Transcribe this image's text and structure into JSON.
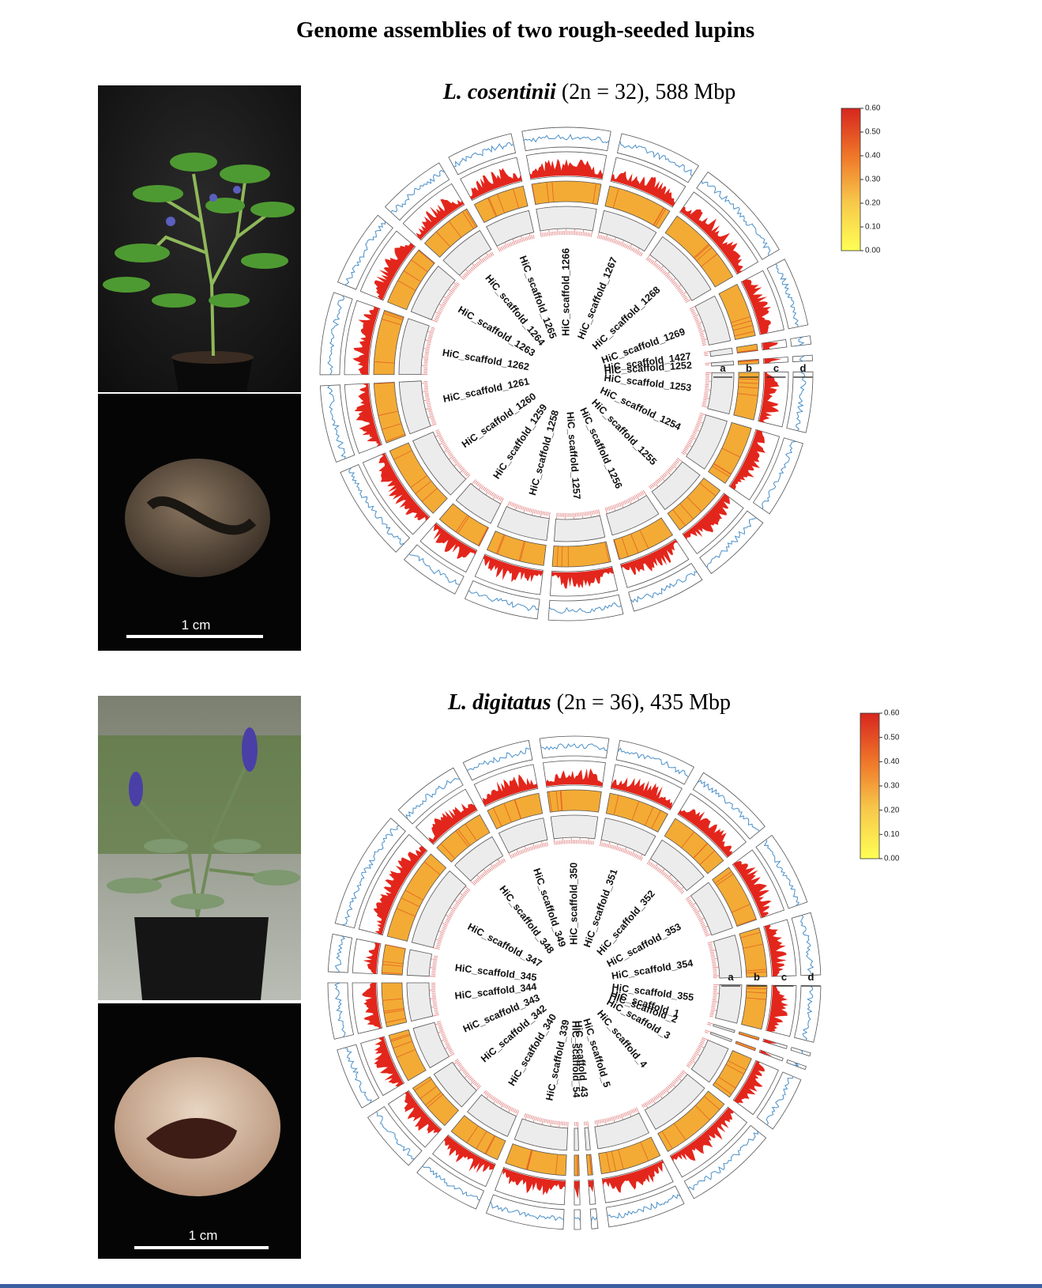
{
  "title": "Genome assemblies of two rough-seeded lupins",
  "panels": [
    {
      "species": "L. cosentinii",
      "detail": "(2n = 32), 588 Mbp",
      "scale_bar": "1 cm",
      "track_labels": [
        "a",
        "b",
        "c",
        "d"
      ],
      "colorbar": {
        "lim": [
          0,
          0.6
        ],
        "ticks": [
          {
            "value": 0.6,
            "label": "0.60"
          },
          {
            "value": 0.5,
            "label": "0.50"
          },
          {
            "value": 0.4,
            "label": "0.40"
          },
          {
            "value": 0.3,
            "label": "0.30"
          },
          {
            "value": 0.2,
            "label": "0.20"
          },
          {
            "value": 0.1,
            "label": "0.10"
          },
          {
            "value": 0,
            "label": "0.00"
          }
        ]
      },
      "scaffolds": [
        {
          "name": "HiC_scaffold_1266",
          "size": 32
        },
        {
          "name": "HiC_scaffold_1267",
          "size": 30
        },
        {
          "name": "HiC_scaffold_1268",
          "size": 38
        },
        {
          "name": "HiC_scaffold_1269",
          "size": 25
        },
        {
          "name": "HiC_scaffold_1427",
          "size": 3
        },
        {
          "name": "HiC_scaffold_1252",
          "size": 2
        },
        {
          "name": "HiC_scaffold_1253",
          "size": 22
        },
        {
          "name": "HiC_scaffold_1254",
          "size": 28
        },
        {
          "name": "HiC_scaffold_1255",
          "size": 26
        },
        {
          "name": "HiC_scaffold_1256",
          "size": 27
        },
        {
          "name": "HiC_scaffold_1257",
          "size": 27
        },
        {
          "name": "HiC_scaffold_1258",
          "size": 27
        },
        {
          "name": "HiC_scaffold_1259",
          "size": 22
        },
        {
          "name": "HiC_scaffold_1260",
          "size": 35
        },
        {
          "name": "HiC_scaffold_1261",
          "size": 28
        },
        {
          "name": "HiC_scaffold_1262",
          "size": 30
        },
        {
          "name": "HiC_scaffold_1263",
          "size": 28
        },
        {
          "name": "HiC_scaffold_1264",
          "size": 25
        },
        {
          "name": "HiC_scaffold_1265",
          "size": 24
        }
      ]
    },
    {
      "species": "L. digitatus",
      "detail": "(2n = 36), 435 Mbp",
      "scale_bar": "1 cm",
      "track_labels": [
        "a",
        "b",
        "c",
        "d"
      ],
      "colorbar": {
        "lim": [
          0,
          0.6
        ],
        "ticks": [
          {
            "value": 0.6,
            "label": "0.60"
          },
          {
            "value": 0.5,
            "label": "0.50"
          },
          {
            "value": 0.4,
            "label": "0.40"
          },
          {
            "value": 0.3,
            "label": "0.30"
          },
          {
            "value": 0.2,
            "label": "0.20"
          },
          {
            "value": 0.1,
            "label": "0.10"
          },
          {
            "value": 0,
            "label": "0.00"
          }
        ]
      },
      "scaffolds": [
        {
          "name": "HiC_scaffold_350",
          "size": 22
        },
        {
          "name": "HiC_scaffold_351",
          "size": 25
        },
        {
          "name": "HiC_scaffold_352",
          "size": 26
        },
        {
          "name": "HiC_scaffold_353",
          "size": 24
        },
        {
          "name": "HiC_scaffold_354",
          "size": 20
        },
        {
          "name": "HiC_scaffold_355",
          "size": 18
        },
        {
          "name": "HiC_scaffold_1",
          "size": 1
        },
        {
          "name": "HiC_scaffold_2",
          "size": 1
        },
        {
          "name": "HiC_scaffold_3",
          "size": 18
        },
        {
          "name": "HiC_scaffold_4",
          "size": 30
        },
        {
          "name": "HiC_scaffold_5",
          "size": 25
        },
        {
          "name": "HiC_scaffold_43",
          "size": 2
        },
        {
          "name": "HiC_scaffold_54",
          "size": 2
        },
        {
          "name": "HiC_scaffold_339",
          "size": 25
        },
        {
          "name": "HiC_scaffold_340",
          "size": 22
        },
        {
          "name": "HiC_scaffold_342",
          "size": 20
        },
        {
          "name": "HiC_scaffold_343",
          "size": 20
        },
        {
          "name": "HiC_scaffold_344",
          "size": 18
        },
        {
          "name": "HiC_scaffold_345",
          "size": 12
        },
        {
          "name": "HiC_scaffold_347",
          "size": 38
        },
        {
          "name": "HiC_scaffold_348",
          "size": 22
        },
        {
          "name": "HiC_scaffold_349",
          "size": 22
        }
      ]
    }
  ]
}
